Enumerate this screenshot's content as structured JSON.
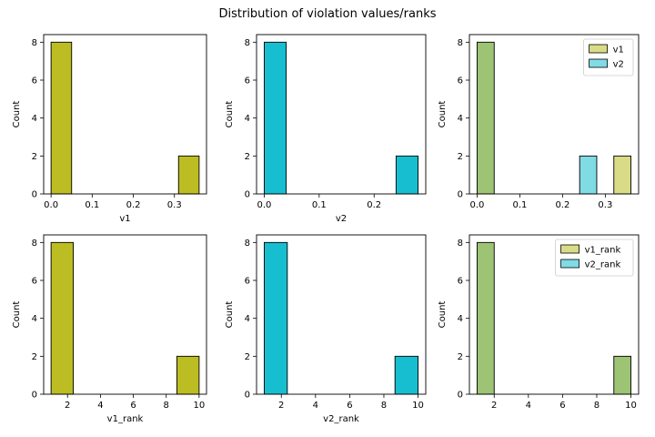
{
  "suptitle": "Distribution of violation values/ranks",
  "colors": {
    "v1": "#bcbd22",
    "v2": "#17becf",
    "overlap": "#9dc374",
    "edge": "#000000"
  },
  "chart_data": [
    {
      "type": "bar",
      "title": "",
      "xlabel": "v1",
      "ylabel": "Count",
      "xlim": [
        -0.018,
        0.378
      ],
      "ylim": [
        0,
        8.4
      ],
      "xticks": [
        0.0,
        0.1,
        0.2,
        0.3
      ],
      "xtick_labels": [
        "0.0",
        "0.1",
        "0.2",
        "0.3"
      ],
      "yticks": [
        0,
        2,
        4,
        6,
        8
      ],
      "ytick_labels": [
        "0",
        "2",
        "4",
        "6",
        "8"
      ],
      "series": [
        {
          "color": "v1",
          "bins": [
            {
              "x0": 0.0,
              "x1": 0.05,
              "count": 8
            },
            {
              "x0": 0.31,
              "x1": 0.36,
              "count": 2
            }
          ]
        }
      ],
      "legend": null
    },
    {
      "type": "bar",
      "title": "",
      "xlabel": "v2",
      "ylabel": "Count",
      "xlim": [
        -0.014,
        0.294
      ],
      "ylim": [
        0,
        8.4
      ],
      "xticks": [
        0.0,
        0.1,
        0.2
      ],
      "xtick_labels": [
        "0.0",
        "0.1",
        "0.2"
      ],
      "yticks": [
        0,
        2,
        4,
        6,
        8
      ],
      "ytick_labels": [
        "0",
        "2",
        "4",
        "6",
        "8"
      ],
      "series": [
        {
          "color": "v2",
          "bins": [
            {
              "x0": 0.0,
              "x1": 0.04,
              "count": 8
            },
            {
              "x0": 0.24,
              "x1": 0.28,
              "count": 2
            }
          ]
        }
      ],
      "legend": null
    },
    {
      "type": "bar",
      "title": "",
      "xlabel": "",
      "ylabel": "Count",
      "xlim": [
        -0.018,
        0.378
      ],
      "ylim": [
        0,
        8.4
      ],
      "xticks": [
        0.0,
        0.1,
        0.2,
        0.3
      ],
      "xtick_labels": [
        "0.0",
        "0.1",
        "0.2",
        "0.3"
      ],
      "yticks": [
        0,
        2,
        4,
        6,
        8
      ],
      "ytick_labels": [
        "0",
        "2",
        "4",
        "6",
        "8"
      ],
      "series": [
        {
          "name": "v1",
          "color": "v1",
          "alpha": 0.55,
          "bins": [
            {
              "x0": 0.0,
              "x1": 0.04,
              "count": 8
            },
            {
              "x0": 0.32,
              "x1": 0.36,
              "count": 2
            }
          ]
        },
        {
          "name": "v2",
          "color": "v2",
          "alpha": 0.55,
          "bins": [
            {
              "x0": 0.0,
              "x1": 0.04,
              "count": 8
            },
            {
              "x0": 0.24,
              "x1": 0.28,
              "count": 2
            }
          ]
        }
      ],
      "overlap_color": "overlap",
      "legend": {
        "position": "upper right",
        "entries": [
          {
            "label": "v1",
            "color": "v1"
          },
          {
            "label": "v2",
            "color": "v2"
          }
        ]
      }
    },
    {
      "type": "bar",
      "title": "",
      "xlabel": "v1_rank",
      "ylabel": "Count",
      "xlim": [
        0.55,
        10.45
      ],
      "ylim": [
        0,
        8.4
      ],
      "xticks": [
        2,
        4,
        6,
        8,
        10
      ],
      "xtick_labels": [
        "2",
        "4",
        "6",
        "8",
        "10"
      ],
      "yticks": [
        0,
        2,
        4,
        6,
        8
      ],
      "ytick_labels": [
        "0",
        "2",
        "4",
        "6",
        "8"
      ],
      "series": [
        {
          "color": "v1",
          "bins": [
            {
              "x0": 1.0,
              "x1": 2.35,
              "count": 8
            },
            {
              "x0": 8.65,
              "x1": 10.0,
              "count": 2
            }
          ]
        }
      ],
      "legend": null
    },
    {
      "type": "bar",
      "title": "",
      "xlabel": "v2_rank",
      "ylabel": "Count",
      "xlim": [
        0.55,
        10.45
      ],
      "ylim": [
        0,
        8.4
      ],
      "xticks": [
        2,
        4,
        6,
        8,
        10
      ],
      "xtick_labels": [
        "2",
        "4",
        "6",
        "8",
        "10"
      ],
      "yticks": [
        0,
        2,
        4,
        6,
        8
      ],
      "ytick_labels": [
        "0",
        "2",
        "4",
        "6",
        "8"
      ],
      "series": [
        {
          "color": "v2",
          "bins": [
            {
              "x0": 1.0,
              "x1": 2.35,
              "count": 8
            },
            {
              "x0": 8.65,
              "x1": 10.0,
              "count": 2
            }
          ]
        }
      ],
      "legend": null
    },
    {
      "type": "bar",
      "title": "",
      "xlabel": "",
      "ylabel": "Count",
      "xlim": [
        0.55,
        10.45
      ],
      "ylim": [
        0,
        8.4
      ],
      "xticks": [
        2,
        4,
        6,
        8,
        10
      ],
      "xtick_labels": [
        "2",
        "4",
        "6",
        "8",
        "10"
      ],
      "yticks": [
        0,
        2,
        4,
        6,
        8
      ],
      "ytick_labels": [
        "0",
        "2",
        "4",
        "6",
        "8"
      ],
      "series": [
        {
          "name": "v1_rank",
          "color": "v1",
          "alpha": 0.55,
          "bins": [
            {
              "x0": 1.0,
              "x1": 2.0,
              "count": 8
            },
            {
              "x0": 9.0,
              "x1": 10.0,
              "count": 2
            }
          ]
        },
        {
          "name": "v2_rank",
          "color": "v2",
          "alpha": 0.55,
          "bins": [
            {
              "x0": 1.0,
              "x1": 2.0,
              "count": 8
            },
            {
              "x0": 9.0,
              "x1": 10.0,
              "count": 2
            }
          ]
        }
      ],
      "overlap_color": "overlap",
      "legend": {
        "position": "upper right",
        "entries": [
          {
            "label": "v1_rank",
            "color": "v1"
          },
          {
            "label": "v2_rank",
            "color": "v2"
          }
        ]
      }
    }
  ]
}
